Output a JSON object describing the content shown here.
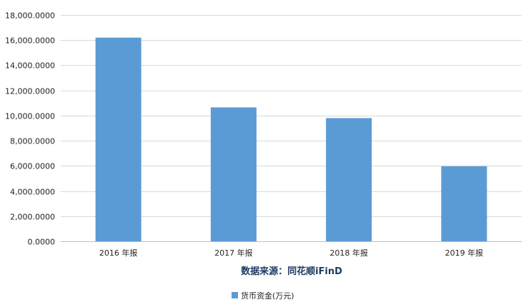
{
  "chart_data": {
    "type": "bar",
    "categories": [
      "2016 年报",
      "2017 年报",
      "2018 年报",
      "2019 年报"
    ],
    "series": [
      {
        "name": "货币资金(万元)",
        "values": [
          16200,
          10650,
          9800,
          5970
        ]
      }
    ],
    "xlabel": "数据来源：同花顺iFinD",
    "ylabel": "",
    "ylim": [
      0,
      18000
    ],
    "yticks": [
      0,
      2000,
      4000,
      6000,
      8000,
      10000,
      12000,
      14000,
      16000,
      18000
    ],
    "ytick_labels": [
      "0.0000",
      "2,000.0000",
      "4,000.0000",
      "6,000.0000",
      "8,000.0000",
      "10,000.0000",
      "12,000.0000",
      "14,000.0000",
      "16,000.0000",
      "18,000.0000"
    ],
    "grid": true,
    "legend_position": "bottom",
    "bar_color": "#5b9bd5"
  }
}
